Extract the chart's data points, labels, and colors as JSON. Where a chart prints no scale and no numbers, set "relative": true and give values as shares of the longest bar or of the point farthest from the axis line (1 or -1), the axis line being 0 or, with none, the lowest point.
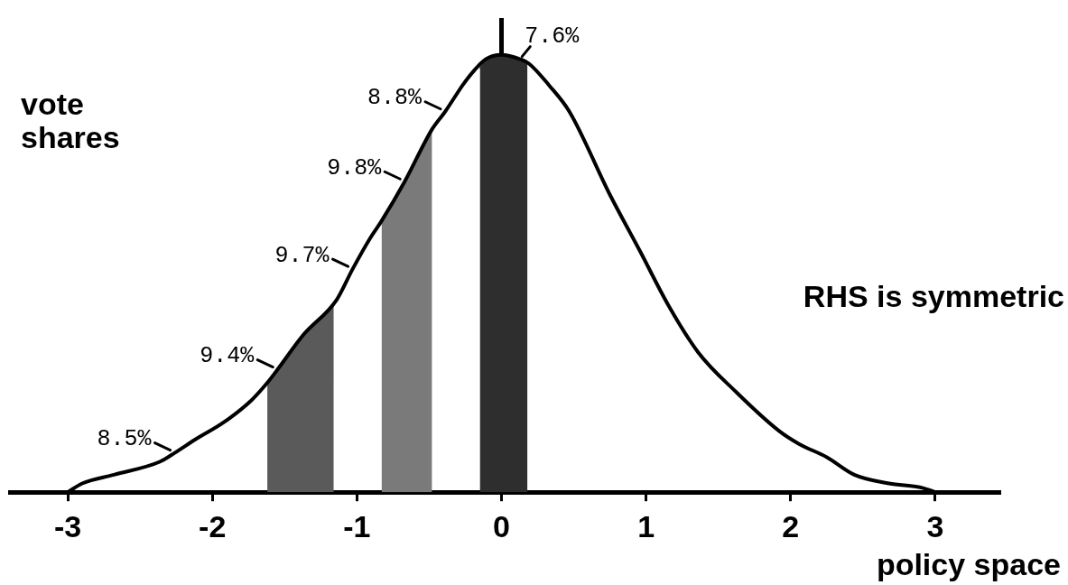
{
  "chart_data": {
    "type": "line",
    "relative": true,
    "xlabel": "policy space",
    "ylabel": "vote shares",
    "xlim": [
      -3.4,
      3.45
    ],
    "xticks": [
      -3,
      -2,
      -1,
      0,
      1,
      2,
      3
    ],
    "tick_labels": "x",
    "series": [
      {
        "color": "#000000",
        "x": [
          -3,
          -2.9,
          -2.68,
          -2.36,
          -2.26,
          -2.12,
          -1.92,
          -1.73,
          -1.62,
          -1.55,
          -1.37,
          -1.14,
          -1.03,
          -0.91,
          -0.83,
          -0.67,
          -0.48,
          -0.39,
          -0.27,
          -0.2,
          -0.11,
          0,
          0.13,
          0.19,
          0.33,
          0.47,
          0.75,
          0.96,
          1.15,
          1.36,
          1.62,
          1.92,
          2.06,
          2.25,
          2.44,
          2.68,
          2.91,
          3
        ],
        "values": [
          0,
          0.02,
          0.04,
          0.07,
          0.09,
          0.12,
          0.16,
          0.21,
          0.25,
          0.28,
          0.36,
          0.44,
          0.51,
          0.58,
          0.62,
          0.71,
          0.83,
          0.87,
          0.93,
          0.96,
          0.99,
          1,
          0.99,
          0.98,
          0.93,
          0.87,
          0.68,
          0.55,
          0.43,
          0.32,
          0.23,
          0.14,
          0.11,
          0.08,
          0.04,
          0.02,
          0.01,
          0
        ]
      },
      {
        "type": "area",
        "color": "#5a5a5a",
        "x": [
          -1.62,
          -1.37,
          -1.16
        ],
        "values": [
          0.25,
          0.36,
          0.43
        ]
      },
      {
        "type": "area",
        "color": "#7a7a7a",
        "x": [
          -0.83,
          -0.67,
          -0.48
        ],
        "values": [
          0.62,
          0.71,
          0.83
        ]
      },
      {
        "type": "area",
        "color": "#2e2e2e",
        "x": [
          -0.15,
          -0.11,
          0,
          0.13,
          0.18
        ],
        "values": [
          0.97,
          0.99,
          1,
          0.99,
          0.98
        ]
      }
    ],
    "annotations": [
      {
        "text": "8.5%",
        "x": -2.26,
        "y": 0.09
      },
      {
        "text": "9.4%",
        "x": -1.55,
        "y": 0.28
      },
      {
        "text": "9.7%",
        "x": -1.03,
        "y": 0.51
      },
      {
        "text": "9.8%",
        "x": -0.67,
        "y": 0.71
      },
      {
        "text": "8.8%",
        "x": -0.39,
        "y": 0.87
      },
      {
        "text": "7.6%",
        "x": 0.13,
        "y": 0.99
      },
      "RHS is symmetric"
    ]
  }
}
